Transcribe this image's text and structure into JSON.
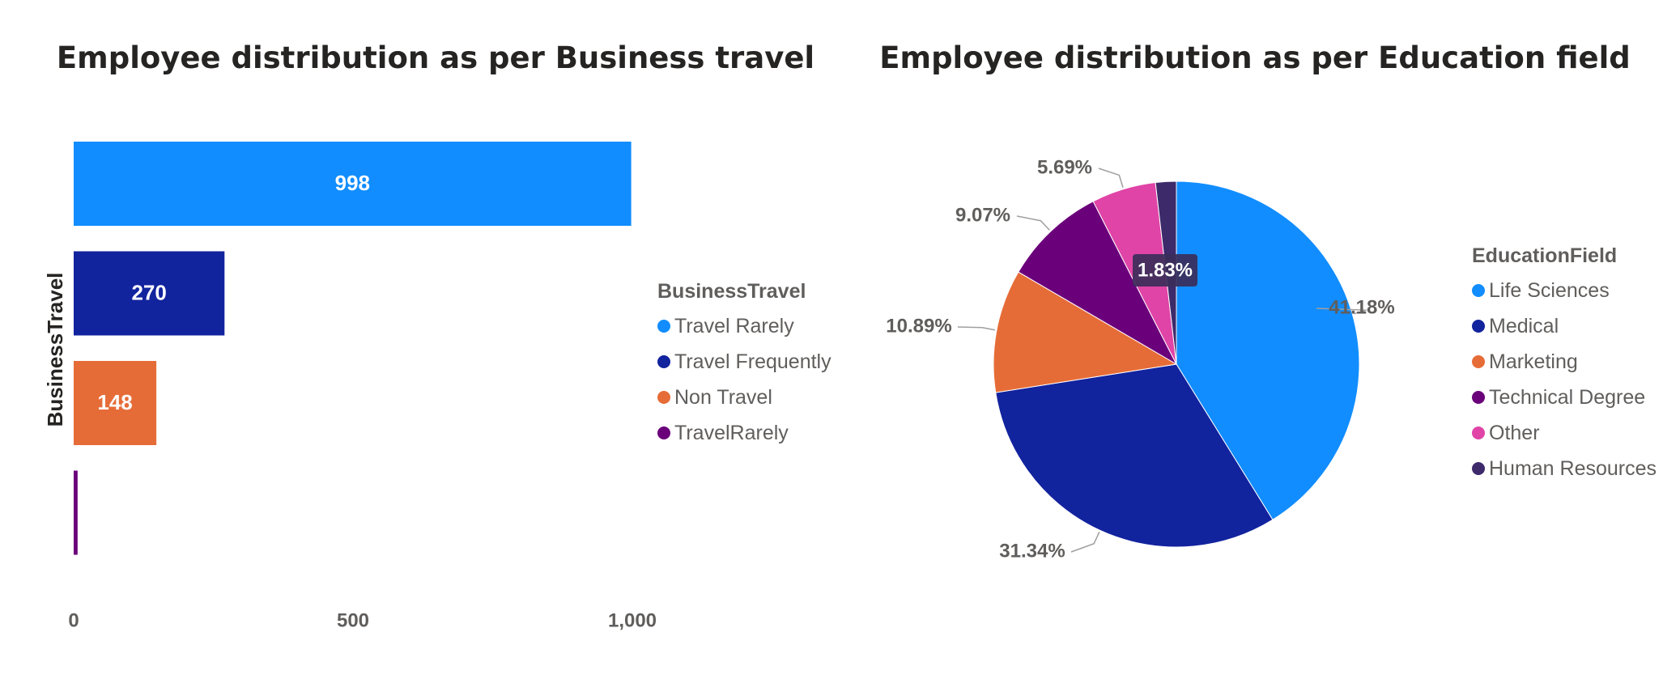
{
  "chart_data": [
    {
      "type": "bar",
      "orientation": "horizontal",
      "title": "Employee distribution as per Business travel",
      "ylabel": "BusinessTravel",
      "xlabel": "",
      "categories": [
        "Travel Rarely",
        "Travel Frequently",
        "Non Travel",
        "TravelRarely"
      ],
      "values": [
        998,
        270,
        148,
        7
      ],
      "data_labels": [
        "998",
        "270",
        "148",
        ""
      ],
      "colors": [
        "#118dff",
        "#12239e",
        "#e66c37",
        "#6b007b"
      ],
      "xlim": [
        0,
        1000
      ],
      "x_ticks": [
        0,
        500,
        1000
      ],
      "x_tick_labels": [
        "0",
        "500",
        "1,000"
      ],
      "grid": false,
      "legend": {
        "title": "BusinessTravel",
        "placement": "right"
      }
    },
    {
      "type": "pie",
      "title": "Employee distribution as per Education field",
      "categories": [
        "Life Sciences",
        "Medical",
        "Marketing",
        "Technical Degree",
        "Other",
        "Human Resources"
      ],
      "values": [
        41.18,
        31.34,
        10.89,
        9.07,
        5.69,
        1.83
      ],
      "data_labels": [
        "41.18%",
        "31.34%",
        "10.89%",
        "9.07%",
        "5.69%",
        "1.83%"
      ],
      "colors": [
        "#118dff",
        "#12239e",
        "#e66c37",
        "#6b007b",
        "#e044a7",
        "#3d2a6b"
      ],
      "legend": {
        "title": "EducationField",
        "placement": "right"
      }
    }
  ]
}
